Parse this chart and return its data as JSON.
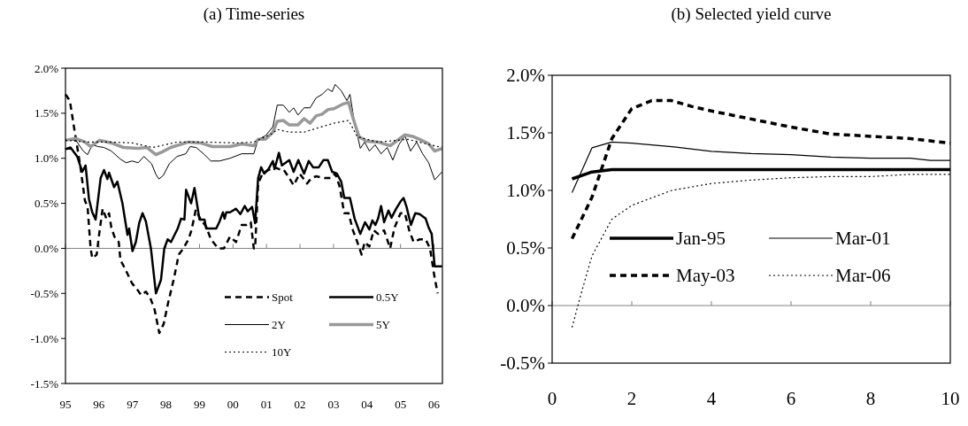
{
  "chart_data": [
    {
      "type": "line",
      "title": "(a) Time-series",
      "xlim": [
        1995,
        2006.25
      ],
      "ylim": [
        -1.5,
        2.0
      ],
      "xticks": [
        {
          "value": 1995,
          "label": "95"
        },
        {
          "value": 1996,
          "label": "96"
        },
        {
          "value": 1997,
          "label": "97"
        },
        {
          "value": 1998,
          "label": "98"
        },
        {
          "value": 1999,
          "label": "99"
        },
        {
          "value": 2000,
          "label": "00"
        },
        {
          "value": 2001,
          "label": "01"
        },
        {
          "value": 2002,
          "label": "02"
        },
        {
          "value": 2003,
          "label": "03"
        },
        {
          "value": 2004,
          "label": "04"
        },
        {
          "value": 2005,
          "label": "05"
        },
        {
          "value": 2006,
          "label": "06"
        }
      ],
      "yticks": [
        {
          "value": -1.5,
          "label": "-1.5%"
        },
        {
          "value": -1.0,
          "label": "-1.0%"
        },
        {
          "value": -0.5,
          "label": "-0.5%"
        },
        {
          "value": 0,
          "label": "0.0%"
        },
        {
          "value": 0.5,
          "label": "0.5%"
        },
        {
          "value": 1.0,
          "label": "1.0%"
        },
        {
          "value": 1.5,
          "label": "1.5%"
        },
        {
          "value": 2.0,
          "label": "2.0%"
        }
      ],
      "legend": "bottom right",
      "series": [
        {
          "name": "Spot",
          "color": "#000000",
          "line_style": "dashed",
          "x": [
            1995.0,
            1995.13,
            1995.27,
            1995.44,
            1995.58,
            1995.66,
            1995.75,
            1995.8,
            1995.93,
            1996.02,
            1996.11,
            1996.22,
            1996.3,
            1996.37,
            1996.46,
            1996.59,
            1996.64,
            1996.77,
            1996.99,
            1997.13,
            1997.26,
            1997.4,
            1997.53,
            1997.66,
            1997.8,
            1997.93,
            1998.06,
            1998.24,
            1998.38,
            1998.52,
            1998.67,
            1998.76,
            1998.89,
            1999.02,
            1999.2,
            1999.34,
            1999.56,
            1999.73,
            1999.91,
            2000.09,
            2000.26,
            2000.4,
            2000.53,
            2000.62,
            2000.66,
            2000.75,
            2000.88,
            2001.06,
            2001.24,
            2001.37,
            2001.5,
            2001.68,
            2001.81,
            2001.99,
            2002.21,
            2002.34,
            2002.48,
            2002.74,
            2002.92,
            2003.05,
            2003.18,
            2003.32,
            2003.45,
            2003.58,
            2003.71,
            2003.84,
            2003.93,
            2004.07,
            2004.2,
            2004.33,
            2004.51,
            2004.69,
            2004.82,
            2005.0,
            2005.13,
            2005.26,
            2005.39,
            2005.57,
            2005.75,
            2005.88,
            2006.02,
            2006.11
          ],
          "values": [
            1.71,
            1.64,
            1.31,
            0.92,
            0.53,
            0.46,
            0.0,
            -0.11,
            -0.07,
            0.2,
            0.44,
            0.33,
            0.39,
            0.23,
            0.13,
            0.07,
            -0.13,
            -0.22,
            -0.39,
            -0.45,
            -0.52,
            -0.48,
            -0.55,
            -0.68,
            -0.94,
            -0.84,
            -0.61,
            -0.33,
            -0.07,
            0.0,
            0.1,
            0.2,
            0.43,
            0.33,
            0.24,
            0.1,
            0.0,
            0.0,
            0.13,
            0.07,
            0.26,
            0.26,
            0.29,
            0.0,
            0.0,
            0.72,
            0.83,
            0.87,
            0.9,
            0.88,
            0.88,
            0.78,
            0.7,
            0.83,
            0.72,
            0.78,
            0.8,
            0.78,
            0.78,
            0.83,
            0.69,
            0.39,
            0.39,
            0.2,
            0.07,
            -0.07,
            0.07,
            0.02,
            0.2,
            0.16,
            0.2,
            0.0,
            0.23,
            0.39,
            0.39,
            0.2,
            0.07,
            0.1,
            0.1,
            0.0,
            -0.33,
            -0.5
          ]
        },
        {
          "name": "0.5Y",
          "color": "#000000",
          "line_style": "solid",
          "x": [
            1995.0,
            1995.15,
            1995.35,
            1995.5,
            1995.6,
            1995.7,
            1995.8,
            1995.9,
            1996.05,
            1996.15,
            1996.25,
            1996.3,
            1996.45,
            1996.55,
            1996.7,
            1996.85,
            1996.9,
            1997.0,
            1997.1,
            1997.2,
            1997.3,
            1997.4,
            1997.55,
            1997.7,
            1997.85,
            1997.95,
            1998.05,
            1998.15,
            1998.35,
            1998.45,
            1998.55,
            1998.6,
            1998.75,
            1998.85,
            1999.0,
            1999.15,
            1999.2,
            1999.5,
            1999.6,
            1999.7,
            1999.75,
            1999.8,
            1999.91,
            2000.09,
            2000.22,
            2000.35,
            2000.44,
            2000.57,
            2000.66,
            2000.75,
            2000.84,
            2000.93,
            2001.06,
            2001.19,
            2001.24,
            2001.37,
            2001.46,
            2001.68,
            2001.81,
            2001.95,
            2002.12,
            2002.26,
            2002.39,
            2002.56,
            2002.7,
            2002.83,
            2002.96,
            2003.1,
            2003.23,
            2003.32,
            2003.49,
            2003.63,
            2003.8,
            2003.94,
            2004.07,
            2004.16,
            2004.25,
            2004.33,
            2004.42,
            2004.51,
            2004.64,
            2004.73,
            2004.87,
            2005.0,
            2005.09,
            2005.18,
            2005.31,
            2005.44,
            2005.57,
            2005.75,
            2005.84,
            2005.93,
            2006.02,
            2006.24
          ],
          "values": [
            1.1,
            1.12,
            1.02,
            0.85,
            0.92,
            0.55,
            0.4,
            0.32,
            0.78,
            0.87,
            0.77,
            0.84,
            0.68,
            0.74,
            0.5,
            0.15,
            0.22,
            -0.03,
            0.07,
            0.28,
            0.39,
            0.3,
            0.0,
            -0.5,
            -0.35,
            0.0,
            0.1,
            0.07,
            0.22,
            0.33,
            0.32,
            0.65,
            0.5,
            0.67,
            0.32,
            0.32,
            0.22,
            0.22,
            0.3,
            0.4,
            0.33,
            0.4,
            0.4,
            0.44,
            0.38,
            0.47,
            0.41,
            0.46,
            0.28,
            0.78,
            0.9,
            0.83,
            0.88,
            0.97,
            0.88,
            1.06,
            0.92,
            0.98,
            0.85,
            0.98,
            0.83,
            0.97,
            0.9,
            0.9,
            0.98,
            0.98,
            0.85,
            0.83,
            0.74,
            0.56,
            0.56,
            0.33,
            0.16,
            0.29,
            0.21,
            0.31,
            0.26,
            0.33,
            0.47,
            0.29,
            0.42,
            0.34,
            0.44,
            0.52,
            0.56,
            0.46,
            0.26,
            0.39,
            0.38,
            0.33,
            0.23,
            0.16,
            -0.2,
            -0.2
          ]
        },
        {
          "name": "2Y",
          "color": "#000000",
          "line_style": "solid",
          "x": [
            1995.0,
            1995.31,
            1995.53,
            1995.66,
            1995.8,
            1995.97,
            1996.15,
            1996.37,
            1996.64,
            1996.81,
            1996.99,
            1997.17,
            1997.34,
            1997.57,
            1997.7,
            1997.79,
            1997.92,
            1998.1,
            1998.33,
            1998.59,
            1998.72,
            1998.9,
            1999.12,
            1999.34,
            1999.6,
            1999.91,
            2000.26,
            2000.62,
            2000.75,
            2000.97,
            2001.19,
            2001.32,
            2001.5,
            2001.68,
            2001.81,
            2001.94,
            2002.12,
            2002.3,
            2002.48,
            2002.66,
            2002.83,
            2002.96,
            2003.05,
            2003.23,
            2003.4,
            2003.49,
            2003.62,
            2003.8,
            2003.93,
            2004.07,
            2004.24,
            2004.42,
            2004.6,
            2004.77,
            2004.95,
            2005.13,
            2005.3,
            2005.48,
            2005.66,
            2005.84,
            2006.02,
            2006.24
          ],
          "values": [
            1.2,
            1.2,
            1.08,
            1.04,
            1.15,
            1.13,
            1.12,
            1.08,
            0.99,
            0.95,
            0.97,
            0.95,
            1.02,
            0.94,
            0.82,
            0.77,
            0.81,
            0.94,
            1.02,
            1.05,
            1.13,
            1.12,
            1.05,
            0.97,
            0.97,
            1.0,
            1.05,
            1.05,
            1.21,
            1.25,
            1.35,
            1.59,
            1.59,
            1.51,
            1.56,
            1.48,
            1.56,
            1.56,
            1.67,
            1.71,
            1.77,
            1.74,
            1.82,
            1.75,
            1.64,
            1.71,
            1.41,
            1.11,
            1.18,
            1.08,
            1.15,
            1.05,
            1.12,
            0.98,
            1.15,
            1.25,
            1.08,
            1.18,
            1.05,
            0.95,
            0.76,
            0.85
          ]
        },
        {
          "name": "5Y",
          "color": "#999999",
          "line_style": "solid",
          "x": [
            1995.0,
            1995.31,
            1995.58,
            1995.75,
            1996.02,
            1996.37,
            1996.73,
            1997.17,
            1997.43,
            1997.7,
            1997.88,
            1998.14,
            1998.67,
            1999.03,
            1999.38,
            1999.91,
            2000.26,
            2000.62,
            2000.75,
            2000.97,
            2001.19,
            2001.32,
            2001.5,
            2001.68,
            2001.94,
            2002.12,
            2002.3,
            2002.48,
            2002.66,
            2002.83,
            2003.01,
            2003.27,
            2003.45,
            2003.58,
            2003.76,
            2003.98,
            2004.33,
            2004.69,
            2005.13,
            2005.39,
            2005.57,
            2005.84,
            2006.02,
            2006.24
          ],
          "values": [
            1.2,
            1.22,
            1.18,
            1.13,
            1.2,
            1.17,
            1.12,
            1.11,
            1.12,
            1.04,
            1.07,
            1.12,
            1.18,
            1.17,
            1.13,
            1.13,
            1.16,
            1.14,
            1.21,
            1.21,
            1.29,
            1.41,
            1.42,
            1.37,
            1.37,
            1.44,
            1.39,
            1.47,
            1.49,
            1.54,
            1.55,
            1.6,
            1.62,
            1.45,
            1.24,
            1.19,
            1.18,
            1.14,
            1.26,
            1.24,
            1.21,
            1.16,
            1.08,
            1.11
          ]
        },
        {
          "name": "10Y",
          "color": "#000000",
          "line_style": "dotted",
          "x": [
            1995.0,
            1995.66,
            1996.37,
            1996.99,
            1997.61,
            1998.33,
            1999.21,
            2000.09,
            2000.62,
            2001.15,
            2001.32,
            2001.68,
            2002.12,
            2002.56,
            2003.01,
            2003.45,
            2003.71,
            2004.33,
            2005.22,
            2006.11,
            2006.24
          ],
          "values": [
            1.2,
            1.18,
            1.18,
            1.17,
            1.12,
            1.18,
            1.18,
            1.17,
            1.18,
            1.27,
            1.32,
            1.29,
            1.29,
            1.34,
            1.39,
            1.42,
            1.24,
            1.18,
            1.21,
            1.13,
            1.13
          ]
        }
      ]
    },
    {
      "type": "line",
      "title": "(b) Selected yield curve",
      "xlim": [
        0,
        10
      ],
      "ylim": [
        -0.5,
        2.0
      ],
      "xticks": [
        0,
        2,
        4,
        6,
        8,
        10
      ],
      "yticks": [
        {
          "value": -0.5,
          "label": "-0.5%"
        },
        {
          "value": 0,
          "label": "0.0%"
        },
        {
          "value": 0.5,
          "label": "0.5%"
        },
        {
          "value": 1.0,
          "label": "1.0%"
        },
        {
          "value": 1.5,
          "label": "1.5%"
        },
        {
          "value": 2.0,
          "label": "2.0%"
        }
      ],
      "legend": "bottom",
      "series": [
        {
          "name": "Jan-95",
          "color": "#000000",
          "line_style": "solid",
          "x": [
            0.5,
            1,
            1.5,
            2,
            3,
            4,
            5,
            6,
            7,
            8,
            9,
            10
          ],
          "values": [
            1.1,
            1.16,
            1.18,
            1.18,
            1.18,
            1.18,
            1.18,
            1.18,
            1.18,
            1.18,
            1.18,
            1.18
          ]
        },
        {
          "name": "Mar-01",
          "color": "#000000",
          "line_style": "solid",
          "x": [
            0.5,
            1,
            1.5,
            2,
            3,
            4,
            5,
            6,
            7,
            8,
            9,
            9.5,
            10
          ],
          "values": [
            0.98,
            1.37,
            1.42,
            1.41,
            1.38,
            1.34,
            1.32,
            1.31,
            1.29,
            1.28,
            1.28,
            1.26,
            1.26
          ]
        },
        {
          "name": "May-03",
          "color": "#000000",
          "line_style": "dashed",
          "x": [
            0.5,
            1,
            1.5,
            2,
            2.5,
            3,
            3.5,
            4,
            5,
            6,
            7,
            8,
            9,
            10
          ],
          "values": [
            0.58,
            0.94,
            1.45,
            1.71,
            1.78,
            1.78,
            1.73,
            1.69,
            1.62,
            1.55,
            1.49,
            1.47,
            1.45,
            1.41
          ]
        },
        {
          "name": "Mar-06",
          "color": "#000000",
          "line_style": "dotted",
          "x": [
            0.5,
            0.75,
            1,
            1.5,
            2,
            3,
            4,
            5,
            6,
            7,
            8,
            9,
            10
          ],
          "values": [
            -0.19,
            0.13,
            0.43,
            0.75,
            0.87,
            1.0,
            1.06,
            1.09,
            1.11,
            1.12,
            1.12,
            1.14,
            1.14
          ]
        }
      ]
    }
  ]
}
